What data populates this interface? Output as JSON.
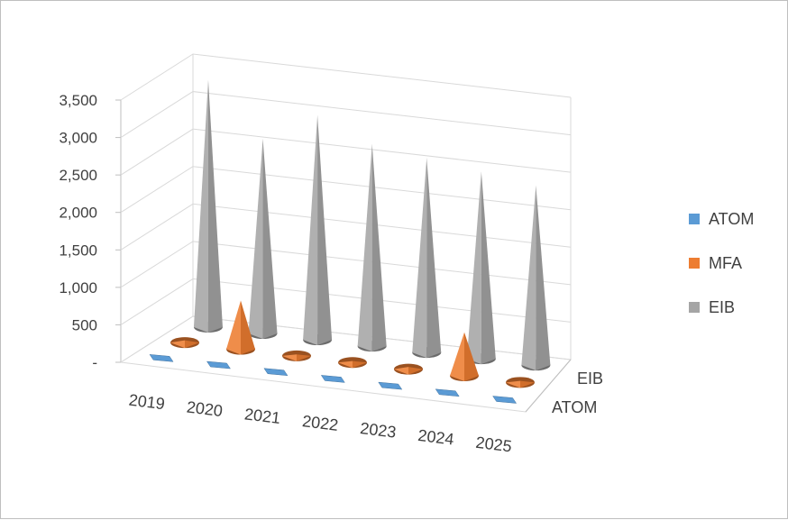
{
  "chart_data": {
    "type": "3d-cone",
    "categories": [
      "2019",
      "2020",
      "2021",
      "2022",
      "2023",
      "2024",
      "2025"
    ],
    "series": [
      {
        "name": "ATOM",
        "color": "#5b9bd5",
        "values": [
          0,
          0,
          0,
          0,
          0,
          0,
          0
        ]
      },
      {
        "name": "MFA",
        "color": "#ed7d31",
        "values": [
          30,
          650,
          20,
          20,
          30,
          580,
          20
        ]
      },
      {
        "name": "EIB",
        "color": "#a5a5a5",
        "values": [
          3300,
          2600,
          3000,
          2700,
          2600,
          2500,
          2400
        ]
      }
    ],
    "depth_labels": [
      "EIB",
      "ATOM"
    ],
    "y_ticks": [
      "-",
      "500",
      "1,000",
      "1,500",
      "2,000",
      "2,500",
      "3,000",
      "3,500"
    ],
    "ylim": [
      0,
      3500
    ],
    "grid": true,
    "legend": "right"
  }
}
